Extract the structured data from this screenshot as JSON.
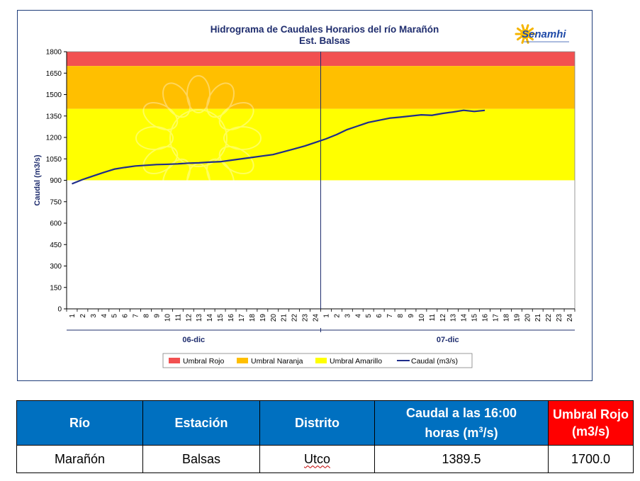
{
  "chart_data": {
    "type": "line",
    "title": "Hidrograma de Caudales Horarios del río Marañón",
    "subtitle": "Est. Balsas",
    "ylabel": "Caudal  (m3/s)",
    "ylim": [
      0,
      1800
    ],
    "yticks": [
      0,
      150,
      300,
      450,
      600,
      750,
      900,
      1050,
      1200,
      1350,
      1500,
      1650,
      1800
    ],
    "hours": [
      "1",
      "2",
      "3",
      "4",
      "5",
      "6",
      "7",
      "8",
      "9",
      "10",
      "11",
      "12",
      "13",
      "14",
      "15",
      "16",
      "17",
      "18",
      "19",
      "20",
      "21",
      "22",
      "23",
      "24"
    ],
    "days": [
      "06-dic",
      "07-dic"
    ],
    "bands": [
      {
        "name": "Umbral Rojo",
        "from": 1700,
        "to": 1800,
        "color": "#f25050"
      },
      {
        "name": "Umbral Naranja",
        "from": 1400,
        "to": 1700,
        "color": "#ffbf00"
      },
      {
        "name": "Umbral Amarillo",
        "from": 900,
        "to": 1400,
        "color": "#ffff00"
      }
    ],
    "series": [
      {
        "name": "Caudal (m3/s)",
        "color": "#1f2d8a",
        "x": [
          1,
          2,
          3,
          4,
          5,
          6,
          7,
          8,
          9,
          10,
          11,
          12,
          13,
          14,
          15,
          16,
          17,
          18,
          19,
          20,
          21,
          22,
          23,
          24,
          25,
          26,
          27,
          28,
          29,
          30,
          31,
          32,
          33,
          34,
          35,
          36,
          37,
          38,
          39,
          40
        ],
        "values": [
          875,
          905,
          930,
          955,
          978,
          990,
          1000,
          1005,
          1010,
          1012,
          1015,
          1020,
          1022,
          1027,
          1030,
          1040,
          1050,
          1060,
          1070,
          1080,
          1100,
          1120,
          1140,
          1165,
          1190,
          1220,
          1255,
          1280,
          1305,
          1320,
          1335,
          1342,
          1350,
          1358,
          1355,
          1368,
          1378,
          1390,
          1382,
          1389.5
        ]
      }
    ],
    "legend_position": "bottom",
    "grid": false
  },
  "logo": {
    "text": "Senamhi"
  },
  "table": {
    "headers": {
      "rio": "Río",
      "estacion": "Estación",
      "distrito": "Distrito",
      "caudal_line1": "Caudal a las 16:00",
      "caudal_line2_prefix": "horas (m",
      "caudal_sup": "3",
      "caudal_line2_suffix": "/s)",
      "umbral_line1": "Umbral Rojo",
      "umbral_line2": "(m3/s)"
    },
    "row": {
      "rio": "Marañón",
      "estacion": "Balsas",
      "distrito": "Utco",
      "caudal": "1389.5",
      "umbral": "1700.0"
    }
  }
}
